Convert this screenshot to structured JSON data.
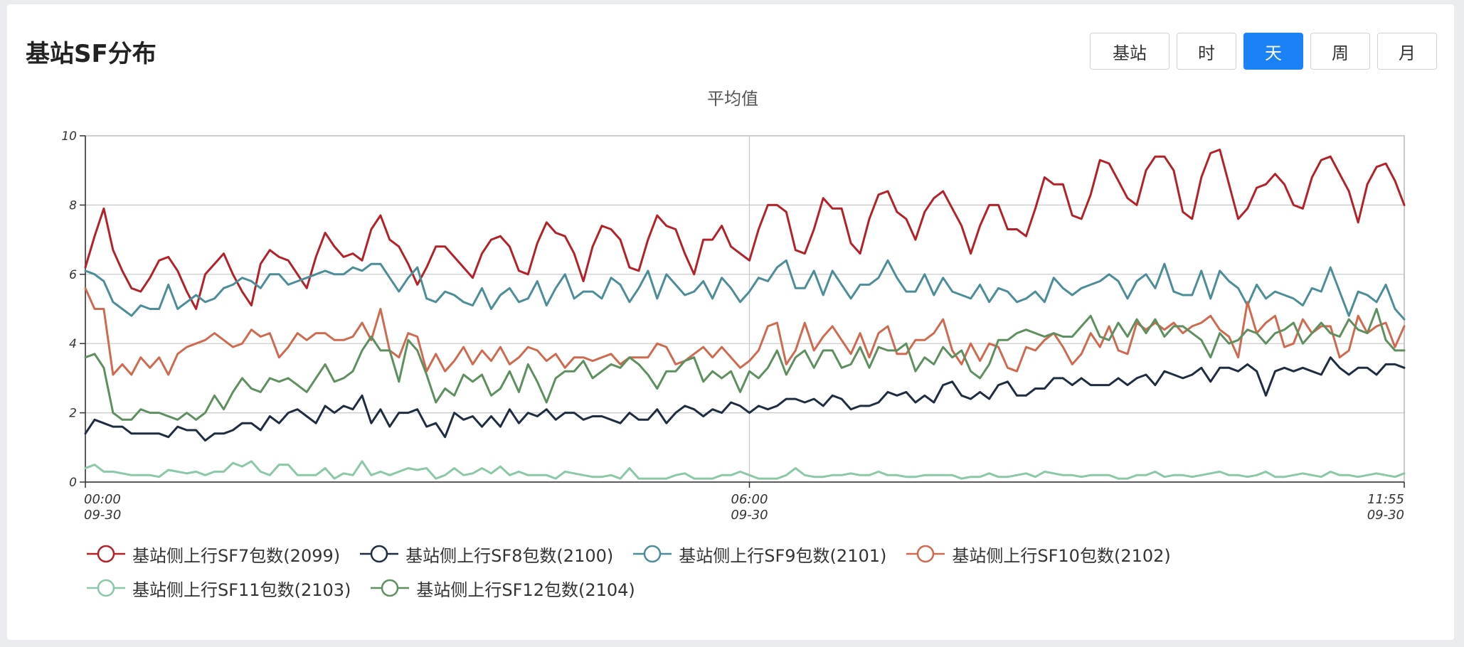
{
  "header": {
    "title": "基站SF分布",
    "buttons": [
      {
        "label": "基站",
        "active": false
      },
      {
        "label": "时",
        "active": false
      },
      {
        "label": "天",
        "active": true
      },
      {
        "label": "周",
        "active": false
      },
      {
        "label": "月",
        "active": false
      }
    ]
  },
  "colors": {
    "accent": "#1a82f5",
    "grid": "#c8c8c8"
  },
  "chart_data": {
    "type": "line",
    "title": "平均值",
    "xlabel": "",
    "ylabel": "",
    "ylim": [
      0,
      10
    ],
    "yticks": [
      0,
      2,
      4,
      6,
      8,
      10
    ],
    "grid": true,
    "legend_position": "bottom",
    "x": [
      "09-30 00:00",
      "09-30 00:05",
      "09-30 00:10",
      "09-30 00:15",
      "09-30 00:20",
      "09-30 00:25",
      "09-30 00:30",
      "09-30 00:35",
      "09-30 00:40",
      "09-30 00:45",
      "09-30 00:50",
      "09-30 00:55",
      "09-30 01:00",
      "09-30 01:05",
      "09-30 01:10",
      "09-30 01:15",
      "09-30 01:20",
      "09-30 01:25",
      "09-30 01:30",
      "09-30 01:35",
      "09-30 01:40",
      "09-30 01:45",
      "09-30 01:50",
      "09-30 01:55",
      "09-30 02:00",
      "09-30 02:05",
      "09-30 02:10",
      "09-30 02:15",
      "09-30 02:20",
      "09-30 02:25",
      "09-30 02:30",
      "09-30 02:35",
      "09-30 02:40",
      "09-30 02:45",
      "09-30 02:50",
      "09-30 02:55",
      "09-30 03:00",
      "09-30 03:05",
      "09-30 03:10",
      "09-30 03:15",
      "09-30 03:20",
      "09-30 03:25",
      "09-30 03:30",
      "09-30 03:35",
      "09-30 03:40",
      "09-30 03:45",
      "09-30 03:50",
      "09-30 03:55",
      "09-30 04:00",
      "09-30 04:05",
      "09-30 04:10",
      "09-30 04:15",
      "09-30 04:20",
      "09-30 04:25",
      "09-30 04:30",
      "09-30 04:35",
      "09-30 04:40",
      "09-30 04:45",
      "09-30 04:50",
      "09-30 04:55",
      "09-30 05:00",
      "09-30 05:05",
      "09-30 05:10",
      "09-30 05:15",
      "09-30 05:20",
      "09-30 05:25",
      "09-30 05:30",
      "09-30 05:35",
      "09-30 05:40",
      "09-30 05:45",
      "09-30 05:50",
      "09-30 05:55",
      "09-30 06:00",
      "09-30 06:05",
      "09-30 06:10",
      "09-30 06:15",
      "09-30 06:20",
      "09-30 06:25",
      "09-30 06:30",
      "09-30 06:35",
      "09-30 06:40",
      "09-30 06:45",
      "09-30 06:50",
      "09-30 06:55",
      "09-30 07:00",
      "09-30 07:05",
      "09-30 07:10",
      "09-30 07:15",
      "09-30 07:20",
      "09-30 07:25",
      "09-30 07:30",
      "09-30 07:35",
      "09-30 07:40",
      "09-30 07:45",
      "09-30 07:50",
      "09-30 07:55",
      "09-30 08:00",
      "09-30 08:05",
      "09-30 08:10",
      "09-30 08:15",
      "09-30 08:20",
      "09-30 08:25",
      "09-30 08:30",
      "09-30 08:35",
      "09-30 08:40",
      "09-30 08:45",
      "09-30 08:50",
      "09-30 08:55",
      "09-30 09:00",
      "09-30 09:05",
      "09-30 09:10",
      "09-30 09:15",
      "09-30 09:20",
      "09-30 09:25",
      "09-30 09:30",
      "09-30 09:35",
      "09-30 09:40",
      "09-30 09:45",
      "09-30 09:50",
      "09-30 09:55",
      "09-30 10:00",
      "09-30 10:05",
      "09-30 10:10",
      "09-30 10:15",
      "09-30 10:20",
      "09-30 10:25",
      "09-30 10:30",
      "09-30 10:35",
      "09-30 10:40",
      "09-30 10:45",
      "09-30 10:50",
      "09-30 10:55",
      "09-30 11:00",
      "09-30 11:05",
      "09-30 11:10",
      "09-30 11:15",
      "09-30 11:20",
      "09-30 11:25",
      "09-30 11:30",
      "09-30 11:35",
      "09-30 11:40",
      "09-30 11:45",
      "09-30 11:50",
      "09-30 11:55"
    ],
    "x_ticks": [
      {
        "index": 0,
        "time": "00:00",
        "date": "09-30"
      },
      {
        "index": 72,
        "time": "06:00",
        "date": "09-30"
      },
      {
        "index": 143,
        "time": "11:55",
        "date": "09-30"
      }
    ],
    "series": [
      {
        "name": "基站侧上行SF7包数(2099)",
        "color": "#b32228",
        "values": [
          6.2,
          7.1,
          7.9,
          6.7,
          6.1,
          5.6,
          5.5,
          5.9,
          6.4,
          6.5,
          6.1,
          5.5,
          5.0,
          6.0,
          6.3,
          6.6,
          6.0,
          5.5,
          5.1,
          6.3,
          6.7,
          6.5,
          6.4,
          6.0,
          5.6,
          6.5,
          7.2,
          6.8,
          6.5,
          6.6,
          6.4,
          7.3,
          7.7,
          7.0,
          6.8,
          6.3,
          5.7,
          6.2,
          6.8,
          6.8,
          6.5,
          6.2,
          5.9,
          6.6,
          7.0,
          7.1,
          6.8,
          6.1,
          6.0,
          6.9,
          7.5,
          7.2,
          7.1,
          6.6,
          5.8,
          6.8,
          7.4,
          7.3,
          7.0,
          6.2,
          6.1,
          7.0,
          7.7,
          7.4,
          7.3,
          6.6,
          6.0,
          7.0,
          7.0,
          7.4,
          6.8,
          6.6,
          6.4,
          7.3,
          8.0,
          8.0,
          7.8,
          6.7,
          6.6,
          7.3,
          8.2,
          7.9,
          7.9,
          6.9,
          6.6,
          7.6,
          8.3,
          8.4,
          7.8,
          7.6,
          7.0,
          7.8,
          8.2,
          8.4,
          7.9,
          7.4,
          6.6,
          7.4,
          8.0,
          8.0,
          7.3,
          7.3,
          7.1,
          7.9,
          8.8,
          8.6,
          8.6,
          7.7,
          7.6,
          8.3,
          9.3,
          9.2,
          8.7,
          8.2,
          8.0,
          9.0,
          9.4,
          9.4,
          9.0,
          7.8,
          7.6,
          8.8,
          9.5,
          9.6,
          8.6,
          7.6,
          7.9,
          8.5,
          8.6,
          8.9,
          8.6,
          8.0,
          7.9,
          8.8,
          9.3,
          9.4,
          8.9,
          8.4,
          7.5,
          8.6,
          9.1,
          9.2,
          8.7,
          8.0
        ]
      },
      {
        "name": "基站侧上行SF8包数(2100)",
        "color": "#1e2d40",
        "values": [
          1.4,
          1.8,
          1.7,
          1.6,
          1.6,
          1.4,
          1.4,
          1.4,
          1.4,
          1.3,
          1.6,
          1.5,
          1.5,
          1.2,
          1.4,
          1.4,
          1.5,
          1.7,
          1.7,
          1.5,
          1.9,
          1.7,
          2.0,
          2.1,
          1.9,
          1.7,
          2.2,
          2.0,
          2.2,
          2.1,
          2.5,
          1.7,
          2.1,
          1.6,
          2.0,
          2.0,
          2.1,
          1.6,
          1.7,
          1.3,
          2.0,
          1.8,
          1.9,
          1.6,
          1.9,
          1.6,
          2.1,
          1.7,
          2.0,
          1.9,
          2.1,
          1.8,
          2.0,
          2.0,
          1.8,
          1.9,
          1.9,
          1.8,
          1.7,
          2.0,
          1.8,
          1.8,
          2.1,
          1.7,
          2.0,
          2.2,
          2.1,
          1.9,
          2.1,
          2.0,
          2.3,
          2.2,
          2.0,
          2.2,
          2.1,
          2.2,
          2.4,
          2.4,
          2.3,
          2.4,
          2.2,
          2.5,
          2.4,
          2.1,
          2.2,
          2.2,
          2.3,
          2.6,
          2.5,
          2.6,
          2.3,
          2.5,
          2.3,
          2.8,
          2.9,
          2.5,
          2.4,
          2.6,
          2.4,
          2.8,
          2.9,
          2.5,
          2.5,
          2.7,
          2.7,
          3.0,
          3.0,
          2.8,
          3.0,
          2.8,
          2.8,
          2.8,
          3.0,
          2.8,
          3.0,
          3.1,
          2.8,
          3.2,
          3.1,
          3.0,
          3.1,
          3.3,
          2.9,
          3.3,
          3.3,
          3.2,
          3.4,
          3.2,
          2.5,
          3.2,
          3.3,
          3.2,
          3.3,
          3.2,
          3.1,
          3.6,
          3.3,
          3.1,
          3.3,
          3.3,
          3.1,
          3.4,
          3.4,
          3.3
        ]
      },
      {
        "name": "基站侧上行SF9包数(2101)",
        "color": "#4c8d98",
        "values": [
          6.1,
          6.0,
          5.8,
          5.2,
          5.0,
          4.8,
          5.1,
          5.0,
          5.0,
          5.7,
          5.0,
          5.2,
          5.4,
          5.2,
          5.3,
          5.6,
          5.7,
          5.9,
          5.8,
          5.6,
          6.0,
          6.0,
          5.7,
          5.8,
          5.9,
          6.0,
          6.1,
          6.0,
          6.0,
          6.2,
          6.1,
          6.3,
          6.3,
          5.9,
          5.5,
          5.9,
          6.2,
          5.3,
          5.2,
          5.5,
          5.4,
          5.2,
          5.1,
          5.6,
          5.0,
          5.4,
          5.6,
          5.2,
          5.3,
          5.8,
          5.1,
          5.6,
          6.0,
          5.3,
          5.5,
          5.5,
          5.3,
          5.9,
          5.7,
          5.2,
          5.6,
          6.1,
          5.3,
          6.0,
          5.7,
          5.4,
          5.5,
          5.8,
          5.3,
          5.9,
          5.6,
          5.2,
          5.5,
          5.9,
          5.8,
          6.2,
          6.4,
          5.6,
          5.6,
          6.1,
          5.4,
          6.1,
          5.7,
          5.3,
          5.7,
          5.7,
          5.9,
          6.4,
          5.9,
          5.5,
          5.5,
          6.0,
          5.4,
          5.9,
          5.5,
          5.4,
          5.3,
          5.7,
          5.2,
          5.6,
          5.5,
          5.2,
          5.3,
          5.5,
          5.2,
          5.9,
          5.6,
          5.4,
          5.6,
          5.7,
          5.8,
          6.0,
          5.8,
          5.3,
          5.8,
          6.0,
          5.6,
          6.3,
          5.5,
          5.4,
          5.4,
          6.1,
          5.3,
          6.1,
          5.8,
          5.6,
          5.1,
          5.7,
          5.3,
          5.5,
          5.4,
          5.3,
          5.1,
          5.6,
          5.5,
          6.2,
          5.5,
          4.8,
          5.5,
          5.4,
          5.2,
          5.7,
          5.0,
          4.7
        ]
      },
      {
        "name": "基站侧上行SF10包数(2102)",
        "color": "#cf6a50",
        "values": [
          5.6,
          5.0,
          5.0,
          3.1,
          3.4,
          3.1,
          3.6,
          3.3,
          3.6,
          3.1,
          3.7,
          3.9,
          4.0,
          4.1,
          4.3,
          4.1,
          3.9,
          4.0,
          4.4,
          4.2,
          4.3,
          3.6,
          3.9,
          4.3,
          4.1,
          4.3,
          4.3,
          4.1,
          4.1,
          4.2,
          4.6,
          4.1,
          5.0,
          3.8,
          3.6,
          4.3,
          4.2,
          3.2,
          3.7,
          3.2,
          3.5,
          3.9,
          3.4,
          3.8,
          3.5,
          3.9,
          3.4,
          3.6,
          3.9,
          3.8,
          3.5,
          3.7,
          3.3,
          3.6,
          3.6,
          3.5,
          3.6,
          3.7,
          3.4,
          3.6,
          3.6,
          3.6,
          4.0,
          3.9,
          3.4,
          3.5,
          3.7,
          3.9,
          3.6,
          3.9,
          3.6,
          3.3,
          3.5,
          3.8,
          4.5,
          4.6,
          3.4,
          3.8,
          4.6,
          3.8,
          4.2,
          4.5,
          4.1,
          3.7,
          4.3,
          3.6,
          4.3,
          4.5,
          3.7,
          3.7,
          4.1,
          4.1,
          4.3,
          4.7,
          3.8,
          3.4,
          4.0,
          3.5,
          4.0,
          3.9,
          3.3,
          3.2,
          3.9,
          3.8,
          4.1,
          4.3,
          3.9,
          3.4,
          3.7,
          4.3,
          3.9,
          4.5,
          3.8,
          3.7,
          4.6,
          4.4,
          4.6,
          4.4,
          4.6,
          4.3,
          4.5,
          4.6,
          4.8,
          4.4,
          4.2,
          3.6,
          5.2,
          4.3,
          4.6,
          4.8,
          3.9,
          4.0,
          4.7,
          4.3,
          4.5,
          4.5,
          3.6,
          3.8,
          4.8,
          4.3,
          4.5,
          4.6,
          3.9,
          4.5
        ]
      },
      {
        "name": "基站侧上行SF11包数(2103)",
        "color": "#8ac8a6",
        "values": [
          0.4,
          0.5,
          0.3,
          0.3,
          0.25,
          0.2,
          0.2,
          0.2,
          0.15,
          0.35,
          0.3,
          0.25,
          0.3,
          0.2,
          0.3,
          0.3,
          0.55,
          0.45,
          0.6,
          0.3,
          0.2,
          0.5,
          0.5,
          0.2,
          0.2,
          0.2,
          0.4,
          0.1,
          0.25,
          0.2,
          0.6,
          0.2,
          0.3,
          0.2,
          0.3,
          0.4,
          0.35,
          0.4,
          0.1,
          0.2,
          0.4,
          0.2,
          0.25,
          0.4,
          0.25,
          0.45,
          0.2,
          0.3,
          0.2,
          0.2,
          0.2,
          0.1,
          0.3,
          0.25,
          0.2,
          0.15,
          0.15,
          0.2,
          0.1,
          0.4,
          0.1,
          0.1,
          0.1,
          0.1,
          0.2,
          0.25,
          0.1,
          0.1,
          0.1,
          0.2,
          0.2,
          0.3,
          0.2,
          0.1,
          0.1,
          0.1,
          0.2,
          0.4,
          0.2,
          0.15,
          0.15,
          0.2,
          0.2,
          0.25,
          0.2,
          0.2,
          0.3,
          0.2,
          0.2,
          0.15,
          0.15,
          0.2,
          0.2,
          0.2,
          0.2,
          0.1,
          0.15,
          0.15,
          0.25,
          0.15,
          0.15,
          0.2,
          0.25,
          0.15,
          0.3,
          0.25,
          0.2,
          0.2,
          0.15,
          0.2,
          0.2,
          0.2,
          0.1,
          0.1,
          0.2,
          0.2,
          0.3,
          0.15,
          0.2,
          0.2,
          0.15,
          0.2,
          0.25,
          0.3,
          0.2,
          0.2,
          0.15,
          0.2,
          0.3,
          0.15,
          0.15,
          0.2,
          0.25,
          0.2,
          0.15,
          0.3,
          0.2,
          0.2,
          0.15,
          0.2,
          0.25,
          0.2,
          0.15,
          0.25
        ]
      },
      {
        "name": "基站侧上行SF12包数(2104)",
        "color": "#5e8f5f",
        "values": [
          3.6,
          3.7,
          3.3,
          2.0,
          1.8,
          1.8,
          2.1,
          2.0,
          2.0,
          1.9,
          1.8,
          2.0,
          1.8,
          2.0,
          2.5,
          2.1,
          2.6,
          3.0,
          2.7,
          2.6,
          3.0,
          2.9,
          3.0,
          2.8,
          2.6,
          3.0,
          3.4,
          2.9,
          3.0,
          3.2,
          3.8,
          4.2,
          3.8,
          3.8,
          2.9,
          4.1,
          3.8,
          3.1,
          2.3,
          2.7,
          2.5,
          3.1,
          2.9,
          3.1,
          2.5,
          2.7,
          3.2,
          2.6,
          3.4,
          2.9,
          2.3,
          3.0,
          3.2,
          3.2,
          3.5,
          3.0,
          3.2,
          3.4,
          3.3,
          3.6,
          3.4,
          3.1,
          2.7,
          3.2,
          3.2,
          3.5,
          3.6,
          2.9,
          3.2,
          3.0,
          3.2,
          2.6,
          3.2,
          3.0,
          3.3,
          3.8,
          3.1,
          3.6,
          3.8,
          3.3,
          3.8,
          3.8,
          3.3,
          3.4,
          3.9,
          3.3,
          3.9,
          3.8,
          3.8,
          4.0,
          3.2,
          3.6,
          3.4,
          3.9,
          3.6,
          3.8,
          3.2,
          3.0,
          3.4,
          4.1,
          4.1,
          4.3,
          4.4,
          4.3,
          4.2,
          4.3,
          4.2,
          4.2,
          4.5,
          4.8,
          4.2,
          4.1,
          4.6,
          4.2,
          4.7,
          4.3,
          4.7,
          4.2,
          4.5,
          4.5,
          4.3,
          4.1,
          3.6,
          4.3,
          4.0,
          4.1,
          4.4,
          4.3,
          4.0,
          4.3,
          4.4,
          4.6,
          4.0,
          4.3,
          4.6,
          4.3,
          4.2,
          4.7,
          4.4,
          4.3,
          5.0,
          4.1,
          3.8,
          3.8
        ]
      }
    ]
  }
}
